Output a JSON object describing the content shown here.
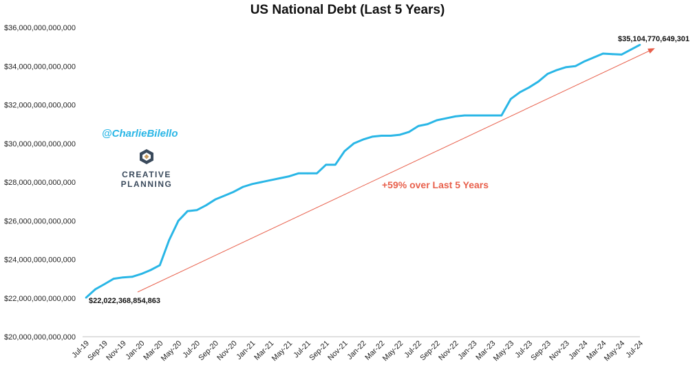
{
  "title": "US National Debt (Last 5 Years)",
  "watermark": {
    "handle": "@CharlieBilello",
    "logo_line1": "CREATIVE",
    "logo_line2": "PLANNING",
    "logo_icon": "creative-planning-logo"
  },
  "colors": {
    "series": "#29B6E6",
    "trend": "#E8604C",
    "annotation": "#E8604C",
    "handle": "#29B6E6"
  },
  "chart_data": {
    "type": "line",
    "title": "US National Debt (Last 5 Years)",
    "xlabel": "",
    "ylabel": "",
    "ylim": [
      20000000000000,
      36000000000000
    ],
    "grid": false,
    "legend": "none",
    "x_ticks": [
      "Jul-19",
      "Sep-19",
      "Nov-19",
      "Jan-20",
      "Mar-20",
      "May-20",
      "Jul-20",
      "Sep-20",
      "Nov-20",
      "Jan-21",
      "Mar-21",
      "May-21",
      "Jul-21",
      "Sep-21",
      "Nov-21",
      "Jan-22",
      "Mar-22",
      "May-22",
      "Jul-22",
      "Sep-22",
      "Nov-22",
      "Jan-23",
      "Mar-23",
      "May-23",
      "Jul-23",
      "Sep-23",
      "Nov-23",
      "Jan-24",
      "Mar-24",
      "May-24",
      "Jul-24"
    ],
    "y_ticks": [
      "$20,000,000,000,000",
      "$22,000,000,000,000",
      "$24,000,000,000,000",
      "$26,000,000,000,000",
      "$28,000,000,000,000",
      "$30,000,000,000,000",
      "$32,000,000,000,000",
      "$34,000,000,000,000",
      "$36,000,000,000,000"
    ],
    "series": [
      {
        "x": [
          "2019-07",
          "2019-08",
          "2019-09",
          "2019-10",
          "2019-11",
          "2019-12",
          "2020-01",
          "2020-02",
          "2020-03",
          "2020-04",
          "2020-05",
          "2020-06",
          "2020-07",
          "2020-08",
          "2020-09",
          "2020-10",
          "2020-11",
          "2020-12",
          "2021-01",
          "2021-02",
          "2021-03",
          "2021-04",
          "2021-05",
          "2021-06",
          "2021-07",
          "2021-08",
          "2021-09",
          "2021-10",
          "2021-11",
          "2021-12",
          "2022-01",
          "2022-02",
          "2022-03",
          "2022-04",
          "2022-05",
          "2022-06",
          "2022-07",
          "2022-08",
          "2022-09",
          "2022-10",
          "2022-11",
          "2022-12",
          "2023-01",
          "2023-02",
          "2023-03",
          "2023-04",
          "2023-05",
          "2023-06",
          "2023-07",
          "2023-08",
          "2023-09",
          "2023-10",
          "2023-11",
          "2023-12",
          "2024-01",
          "2024-02",
          "2024-03",
          "2024-04",
          "2024-05",
          "2024-06",
          "2024-07"
        ],
        "values": [
          22.02,
          22.45,
          22.72,
          23.0,
          23.07,
          23.1,
          23.25,
          23.45,
          23.7,
          25.0,
          26.0,
          26.5,
          26.55,
          26.8,
          27.1,
          27.3,
          27.5,
          27.75,
          27.9,
          28.0,
          28.1,
          28.2,
          28.3,
          28.45,
          28.45,
          28.45,
          28.9,
          28.9,
          29.6,
          30.0,
          30.2,
          30.35,
          30.4,
          30.4,
          30.45,
          30.6,
          30.9,
          31.0,
          31.2,
          31.3,
          31.4,
          31.45,
          31.45,
          31.45,
          31.45,
          31.45,
          32.3,
          32.65,
          32.9,
          33.2,
          33.6,
          33.8,
          33.95,
          34.0,
          34.25,
          34.45,
          34.65,
          34.62,
          34.6,
          34.85,
          35.1047706493
        ],
        "unit_multiplier": 1000000000000
      }
    ],
    "annotations": {
      "start_label": "$22,022,368,854,863",
      "end_label": "$35,104,770,649,301",
      "change_label": "+59% over Last 5 Years"
    }
  }
}
